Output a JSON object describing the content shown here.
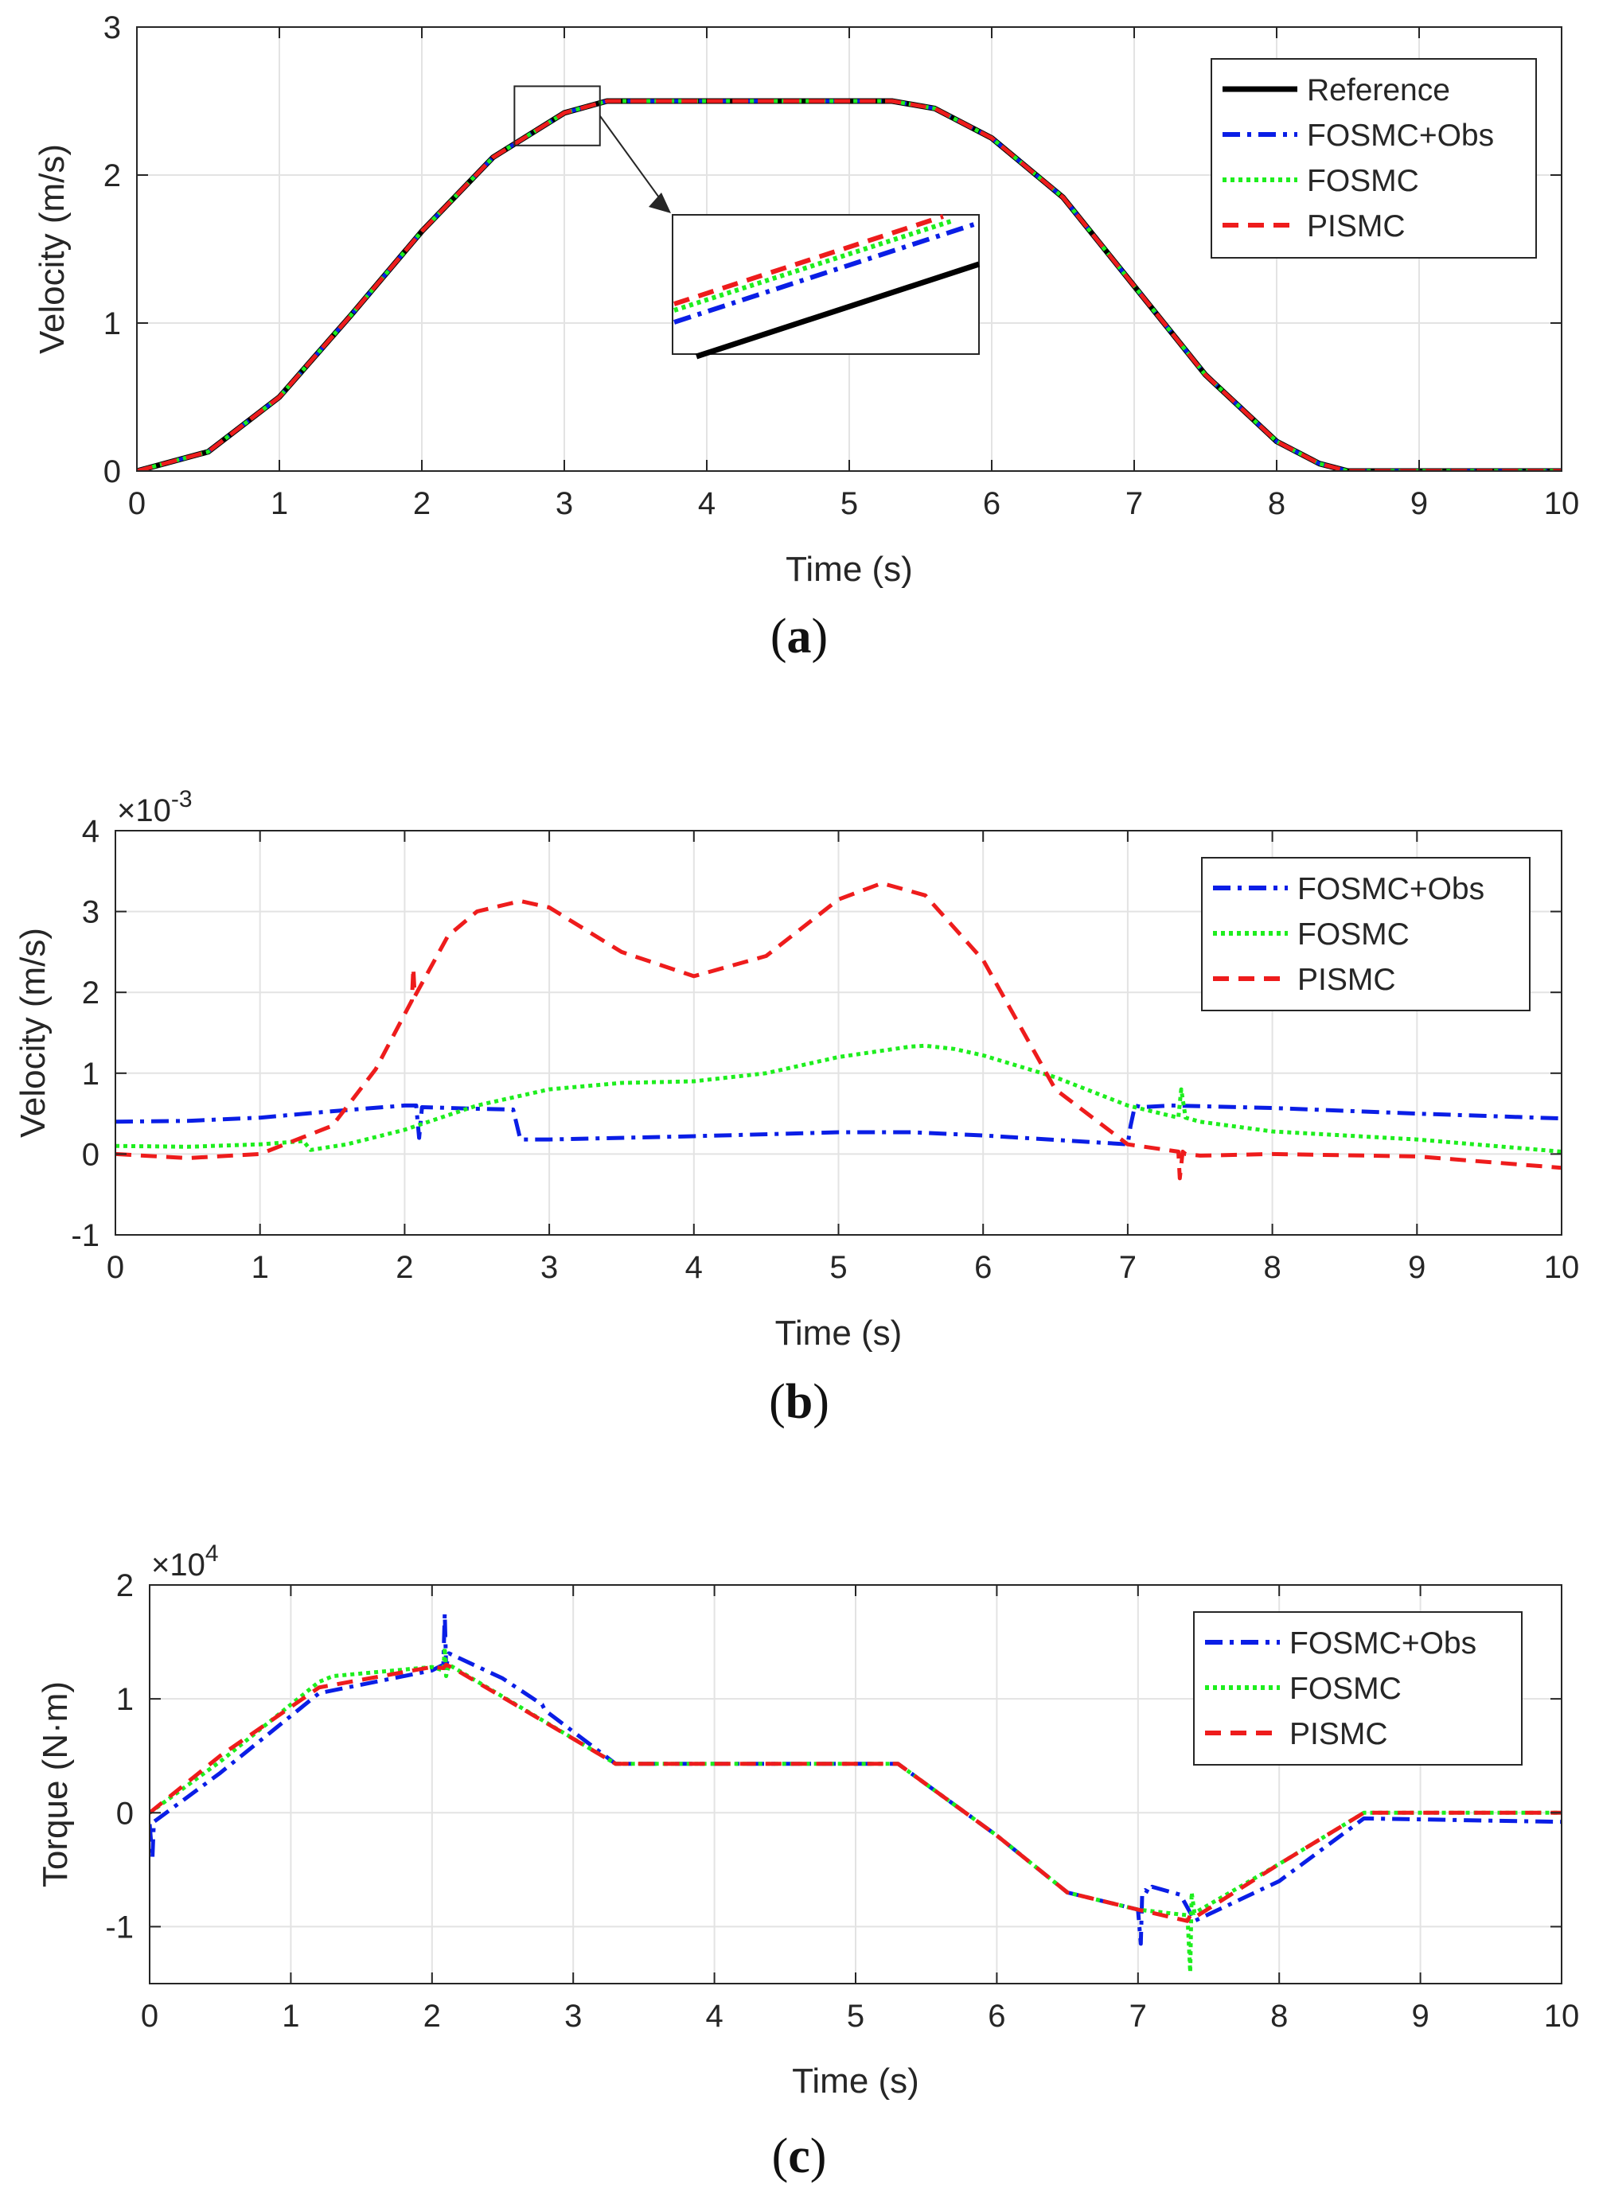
{
  "colors": {
    "reference": "#000000",
    "fosmc_obs": "#0a1ee6",
    "fosmc": "#1eee1e",
    "pismc": "#ee1c1c",
    "grid": "#e3e3e3",
    "axis": "#262626"
  },
  "chart_data": [
    {
      "id": "a",
      "type": "line",
      "caption_letter": "a",
      "xlabel": "Time (s)",
      "ylabel": "Velocity (m/s)",
      "xlim": [
        0,
        10
      ],
      "ylim": [
        0,
        3
      ],
      "xticks": [
        "0",
        "1",
        "2",
        "3",
        "4",
        "5",
        "6",
        "7",
        "8",
        "9",
        "10"
      ],
      "yticks": [
        "0",
        "1",
        "2",
        "3"
      ],
      "multiplier": "",
      "legend": [
        "Reference",
        "FOSMC+Obs",
        "FOSMC",
        "PISMC"
      ],
      "inset": {
        "x_range": [
          2.65,
          3.25
        ],
        "y_range": [
          2.2,
          2.6
        ]
      },
      "series": [
        {
          "name": "Reference",
          "style": "solid",
          "x": [
            0,
            0.5,
            1,
            1.5,
            2,
            2.5,
            3,
            3.3,
            5.3,
            5.6,
            6,
            6.5,
            7,
            7.5,
            8,
            8.3,
            8.5,
            10
          ],
          "y": [
            0,
            0.13,
            0.5,
            1.05,
            1.62,
            2.12,
            2.42,
            2.5,
            2.5,
            2.45,
            2.25,
            1.85,
            1.25,
            0.65,
            0.2,
            0.05,
            0,
            0
          ]
        },
        {
          "name": "FOSMC+Obs",
          "style": "dashdot",
          "x": [
            0,
            0.5,
            1,
            1.5,
            2,
            2.5,
            3,
            3.3,
            5.3,
            5.6,
            6,
            6.5,
            7,
            7.5,
            8,
            8.3,
            8.5,
            10
          ],
          "y": [
            0,
            0.13,
            0.5,
            1.05,
            1.62,
            2.12,
            2.42,
            2.5,
            2.5,
            2.45,
            2.25,
            1.85,
            1.25,
            0.65,
            0.2,
            0.05,
            0,
            0
          ]
        },
        {
          "name": "FOSMC",
          "style": "dotted",
          "x": [
            0,
            0.5,
            1,
            1.5,
            2,
            2.5,
            3,
            3.3,
            5.3,
            5.6,
            6,
            6.5,
            7,
            7.5,
            8,
            8.3,
            8.5,
            10
          ],
          "y": [
            0,
            0.13,
            0.5,
            1.05,
            1.62,
            2.12,
            2.42,
            2.5,
            2.5,
            2.45,
            2.25,
            1.85,
            1.25,
            0.65,
            0.2,
            0.05,
            0,
            0
          ]
        },
        {
          "name": "PISMC",
          "style": "dashed",
          "x": [
            0,
            0.5,
            1,
            1.5,
            2,
            2.5,
            3,
            3.3,
            5.3,
            5.6,
            6,
            6.5,
            7,
            7.5,
            8,
            8.3,
            8.5,
            10
          ],
          "y": [
            0,
            0.13,
            0.5,
            1.05,
            1.62,
            2.12,
            2.42,
            2.5,
            2.5,
            2.45,
            2.25,
            1.85,
            1.25,
            0.65,
            0.2,
            0.05,
            0,
            0
          ]
        }
      ]
    },
    {
      "id": "b",
      "type": "line",
      "caption_letter": "b",
      "xlabel": "Time (s)",
      "ylabel": "Velocity (m/s)",
      "xlim": [
        0,
        10
      ],
      "ylim": [
        -1,
        4
      ],
      "xticks": [
        "0",
        "1",
        "2",
        "3",
        "4",
        "5",
        "6",
        "7",
        "8",
        "9",
        "10"
      ],
      "yticks": [
        "-1",
        "0",
        "1",
        "2",
        "3",
        "4"
      ],
      "multiplier": "×10",
      "multiplier_exp": "-3",
      "legend": [
        "FOSMC+Obs",
        "FOSMC",
        "PISMC"
      ],
      "series": [
        {
          "name": "FOSMC+Obs",
          "style": "dashdot",
          "x": [
            0,
            0.5,
            1,
            1.5,
            2,
            2.08,
            2.1,
            2.12,
            2.5,
            2.75,
            2.8,
            3,
            4,
            5,
            5.5,
            6,
            7,
            7.02,
            7.05,
            7.1,
            7.3,
            8,
            9,
            10
          ],
          "y": [
            0.4,
            0.41,
            0.45,
            0.53,
            0.6,
            0.6,
            0.2,
            0.58,
            0.56,
            0.55,
            0.18,
            0.18,
            0.22,
            0.27,
            0.27,
            0.23,
            0.12,
            0.35,
            0.6,
            0.58,
            0.6,
            0.57,
            0.5,
            0.44
          ]
        },
        {
          "name": "FOSMC",
          "style": "dotted",
          "x": [
            0,
            0.5,
            1,
            1.3,
            1.35,
            1.6,
            2,
            2.5,
            3,
            3.5,
            4,
            4.5,
            5,
            5.5,
            5.6,
            5.8,
            6,
            6.5,
            7,
            7.35,
            7.37,
            7.4,
            7.5,
            8,
            9,
            10
          ],
          "y": [
            0.1,
            0.09,
            0.12,
            0.16,
            0.05,
            0.12,
            0.3,
            0.6,
            0.8,
            0.88,
            0.9,
            1.0,
            1.2,
            1.33,
            1.34,
            1.3,
            1.22,
            0.95,
            0.6,
            0.45,
            0.8,
            0.45,
            0.4,
            0.28,
            0.18,
            0.03
          ]
        },
        {
          "name": "PISMC",
          "style": "dashed",
          "x": [
            0,
            0.5,
            1,
            1.5,
            1.8,
            2.05,
            2.06,
            2.07,
            2.3,
            2.5,
            2.8,
            3,
            3.5,
            4,
            4.5,
            5,
            5.3,
            5.6,
            6,
            6.5,
            7,
            7.35,
            7.36,
            7.38,
            7.4,
            7.5,
            8,
            9,
            10
          ],
          "y": [
            0,
            -0.05,
            0,
            0.35,
            1.05,
            1.9,
            2.3,
            1.95,
            2.7,
            3.0,
            3.13,
            3.05,
            2.5,
            2.2,
            2.45,
            3.15,
            3.35,
            3.2,
            2.4,
            0.8,
            0.12,
            0.03,
            -0.3,
            0.03,
            0,
            -0.02,
            0,
            -0.03,
            -0.17
          ]
        }
      ]
    },
    {
      "id": "c",
      "type": "line",
      "caption_letter": "c",
      "xlabel": "Time (s)",
      "ylabel": "Torque (N·m)",
      "xlim": [
        0,
        10
      ],
      "ylim": [
        -1.5,
        2
      ],
      "xticks": [
        "0",
        "1",
        "2",
        "3",
        "4",
        "5",
        "6",
        "7",
        "8",
        "9",
        "10"
      ],
      "yticks": [
        "-1",
        "0",
        "1",
        "2"
      ],
      "multiplier": "×10",
      "multiplier_exp": "4",
      "legend": [
        "FOSMC+Obs",
        "FOSMC",
        "PISMC"
      ],
      "series": [
        {
          "name": "FOSMC+Obs",
          "style": "dashdot",
          "x": [
            0,
            0.02,
            0.03,
            0.5,
            1.2,
            2,
            2.08,
            2.09,
            2.1,
            2.12,
            2.5,
            2.78,
            2.8,
            3.3,
            5.3,
            6,
            6.5,
            7,
            7.02,
            7.03,
            7.05,
            7.08,
            7.1,
            7.3,
            7.38,
            7.4,
            8,
            8.6,
            10
          ],
          "y": [
            -0.1,
            -0.4,
            -0.08,
            0.35,
            1.05,
            1.25,
            1.3,
            1.75,
            1.28,
            1.4,
            1.18,
            0.95,
            0.9,
            0.43,
            0.43,
            -0.2,
            -0.7,
            -0.85,
            -1.15,
            -0.7,
            -0.68,
            -0.7,
            -0.65,
            -0.72,
            -0.9,
            -0.95,
            -0.6,
            -0.05,
            -0.08
          ]
        },
        {
          "name": "FOSMC",
          "style": "dotted",
          "x": [
            0,
            0.5,
            1.2,
            1.3,
            2,
            2.08,
            2.09,
            2.1,
            2.12,
            3.3,
            5.3,
            6,
            6.5,
            7,
            7.35,
            7.37,
            7.38,
            7.4,
            8,
            8.6,
            10
          ],
          "y": [
            0,
            0.45,
            1.15,
            1.2,
            1.28,
            1.25,
            1.45,
            1.2,
            1.3,
            0.43,
            0.43,
            -0.2,
            -0.7,
            -0.85,
            -0.9,
            -1.4,
            -0.7,
            -0.88,
            -0.45,
            0,
            0
          ]
        },
        {
          "name": "PISMC",
          "style": "dashed",
          "x": [
            0,
            0.5,
            1.2,
            2,
            2.08,
            2.1,
            2.15,
            3.3,
            5.3,
            6,
            6.5,
            7,
            7.35,
            7.37,
            7.4,
            8,
            8.6,
            10
          ],
          "y": [
            0,
            0.5,
            1.1,
            1.28,
            1.27,
            1.3,
            1.27,
            0.43,
            0.43,
            -0.2,
            -0.7,
            -0.85,
            -0.95,
            -0.9,
            -0.92,
            -0.45,
            0,
            0
          ]
        }
      ]
    }
  ]
}
